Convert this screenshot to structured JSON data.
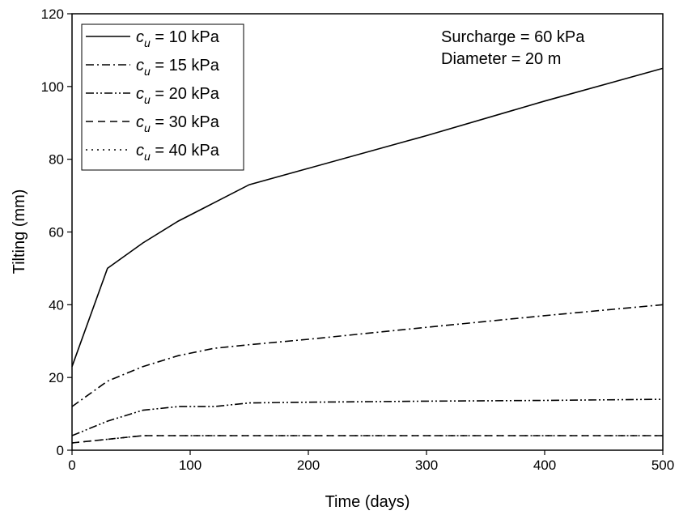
{
  "chart_data": {
    "type": "line",
    "xlabel": "Time (days)",
    "ylabel": "Tilting (mm)",
    "xlim": [
      0,
      500
    ],
    "ylim": [
      0,
      120
    ],
    "xticks": [
      0,
      100,
      200,
      300,
      400,
      500
    ],
    "yticks": [
      0,
      20,
      40,
      60,
      80,
      100,
      120
    ],
    "grid": false,
    "legend_position": "top-left",
    "annotations": [
      "Surcharge = 60 kPa",
      "Diameter = 20 m"
    ],
    "series": [
      {
        "name": "c_u = 10 kPa",
        "legend": {
          "symbol": "c",
          "subscript": "u",
          "rest": " = 10 kPa"
        },
        "style": "solid",
        "x": [
          0,
          30,
          60,
          90,
          120,
          150,
          200,
          300,
          400,
          500
        ],
        "y": [
          23,
          50,
          57,
          63,
          68,
          73,
          77.5,
          86.5,
          96,
          105
        ]
      },
      {
        "name": "c_u = 15 kPa",
        "legend": {
          "symbol": "c",
          "subscript": "u",
          "rest": " = 15 kPa"
        },
        "style": "dash-dot",
        "x": [
          0,
          30,
          60,
          90,
          120,
          150,
          200,
          300,
          400,
          500
        ],
        "y": [
          12,
          19,
          23,
          26,
          28,
          29,
          30.5,
          33.8,
          37,
          40
        ]
      },
      {
        "name": "c_u = 20 kPa",
        "legend": {
          "symbol": "c",
          "subscript": "u",
          "rest": " = 20 kPa"
        },
        "style": "dash-dot-dot",
        "x": [
          0,
          30,
          60,
          90,
          120,
          150,
          200,
          300,
          400,
          500
        ],
        "y": [
          4,
          8,
          11,
          12,
          12,
          13,
          13.2,
          13.5,
          13.7,
          14
        ]
      },
      {
        "name": "c_u = 30 kPa",
        "legend": {
          "symbol": "c",
          "subscript": "u",
          "rest": " = 30 kPa"
        },
        "style": "dash",
        "x": [
          0,
          30,
          60,
          90,
          120,
          150,
          200,
          300,
          400,
          500
        ],
        "y": [
          2,
          3,
          4,
          4,
          4,
          4,
          4,
          4,
          4,
          4
        ]
      },
      {
        "name": "c_u = 40 kPa",
        "legend": {
          "symbol": "c",
          "subscript": "u",
          "rest": " = 40 kPa"
        },
        "style": "dot",
        "x": [
          0,
          30,
          60,
          90,
          120,
          150,
          200,
          300,
          400,
          500
        ],
        "y": [
          2,
          3,
          4,
          4,
          4,
          4,
          4,
          4,
          4,
          4
        ]
      }
    ]
  }
}
